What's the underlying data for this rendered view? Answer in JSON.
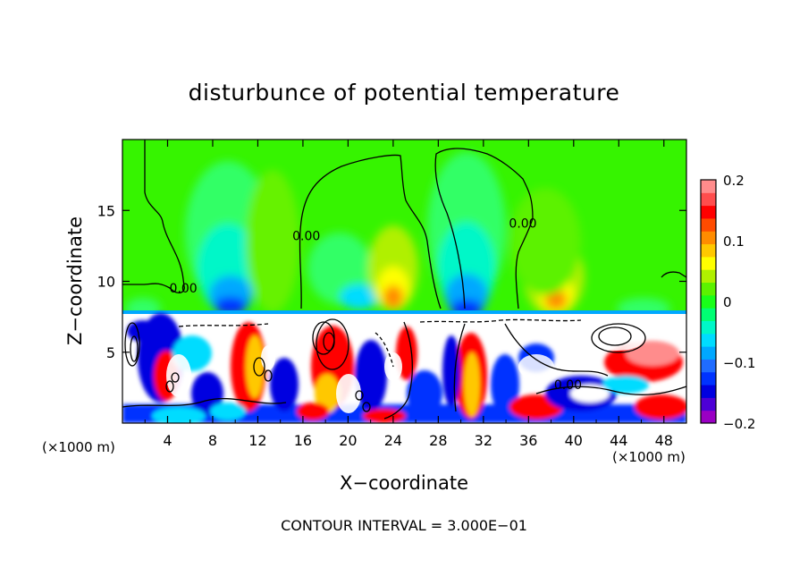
{
  "chart_data": {
    "type": "heatmap",
    "title": "disturbunce of potential temperature",
    "xlabel": "X−coordinate",
    "ylabel": "Z−coordinate",
    "x_unit_left": "(×1000 m)",
    "x_unit_right": "(×1000 m)",
    "footer": "CONTOUR INTERVAL = 3.000E−01",
    "xlim": [
      0,
      50
    ],
    "ylim": [
      0,
      20
    ],
    "x_ticks": [
      4,
      8,
      12,
      16,
      20,
      24,
      28,
      32,
      36,
      40,
      44,
      48
    ],
    "y_ticks": [
      5,
      10,
      15
    ],
    "contour_labels": [
      {
        "text": "0.00",
        "x": 5.4,
        "y": 9.2
      },
      {
        "text": "0.00",
        "x": 16.3,
        "y": 12.9
      },
      {
        "text": "0.00",
        "x": 35.5,
        "y": 13.8
      },
      {
        "text": "0.00",
        "x": 39.5,
        "y": 2.4
      }
    ],
    "colorbar": {
      "vmin": -0.2,
      "vmax": 0.2,
      "tick_labels": [
        "0.2",
        "0.1",
        "0",
        "−0.1",
        "−0.2"
      ],
      "tick_values": [
        0.2,
        0.1,
        0,
        -0.1,
        -0.2
      ],
      "colors": [
        "#9a00c4",
        "#4d00d6",
        "#0000e0",
        "#0033ff",
        "#1f6cff",
        "#00a8ff",
        "#00dcff",
        "#00f7c8",
        "#00ff73",
        "#19ff19",
        "#5cf200",
        "#b0f000",
        "#ffff00",
        "#ffc800",
        "#ff8c00",
        "#ff4b00",
        "#ff0000",
        "#ff4d4d",
        "#ff8c8c"
      ]
    }
  }
}
